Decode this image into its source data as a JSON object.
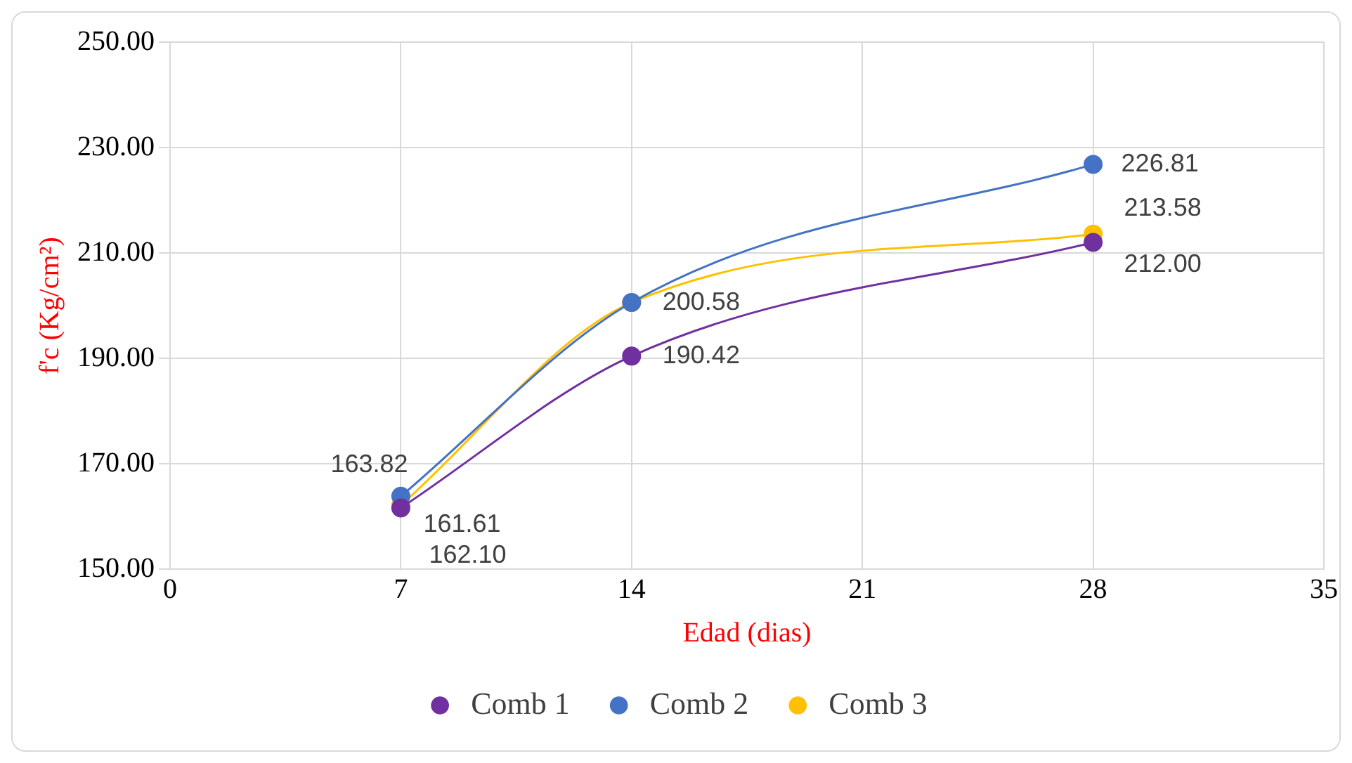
{
  "chart_data": {
    "type": "line",
    "xlabel": "Edad (dias)",
    "ylabel": "f'c (Kg/cm²)",
    "x": [
      7,
      14,
      28
    ],
    "series": [
      {
        "name": "Comb 1",
        "color": "#7030a0",
        "values": [
          161.61,
          190.42,
          212.0
        ],
        "value_labels": [
          "161.61",
          "190.42",
          "212.00"
        ]
      },
      {
        "name": "Comb 2",
        "color": "#4472c4",
        "values": [
          163.82,
          200.6,
          226.81
        ],
        "value_labels": [
          "163.82",
          null,
          "226.81"
        ]
      },
      {
        "name": "Comb 3",
        "color": "#ffc000",
        "values": [
          162.1,
          200.58,
          213.58
        ],
        "value_labels": [
          "162.10",
          "200.58",
          "213.58"
        ]
      }
    ],
    "xlim": [
      0,
      35
    ],
    "xticks": [
      0,
      7,
      14,
      21,
      28,
      35
    ],
    "ylim": [
      150,
      250
    ],
    "yticks": [
      {
        "value": 150,
        "label": "150.00"
      },
      {
        "value": 170,
        "label": "170.00"
      },
      {
        "value": 190,
        "label": "190.00"
      },
      {
        "value": 210,
        "label": "210.00"
      },
      {
        "value": 230,
        "label": "230.00"
      },
      {
        "value": 250,
        "label": "250.00"
      }
    ],
    "grid": true,
    "legend": "bottom",
    "marker": "circle",
    "line_style": "solid"
  }
}
